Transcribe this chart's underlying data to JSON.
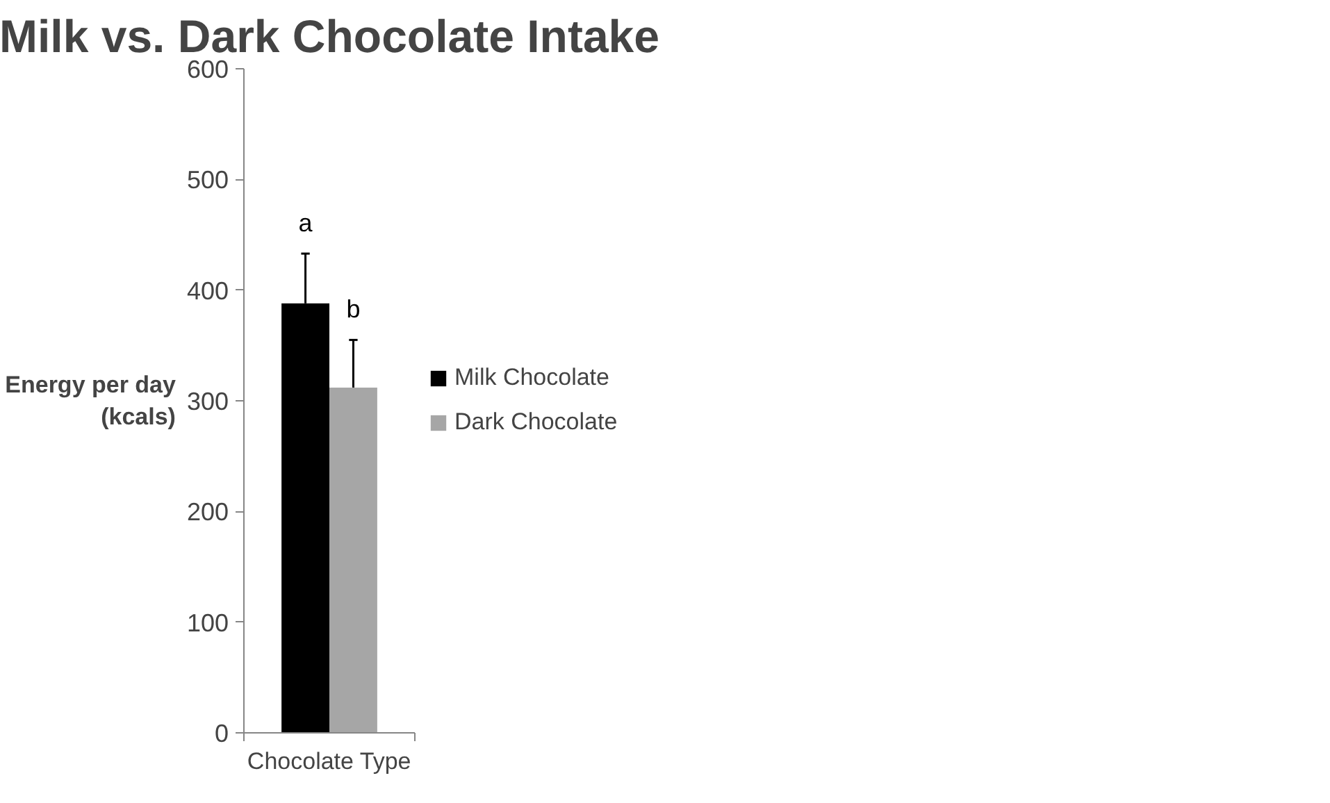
{
  "chart_data": {
    "type": "bar",
    "title": "Milk vs. Dark Chocolate Intake",
    "xlabel": "Chocolate Type",
    "ylabel": "Energy per day\n(kcals)",
    "categories": [
      null
    ],
    "series": [
      {
        "name": "Milk Chocolate",
        "color": "#000000",
        "values": [
          388
        ],
        "errors": [
          [
            388,
            433
          ]
        ]
      },
      {
        "name": "Dark Chocolate",
        "color": "#a6a6a6",
        "values": [
          312
        ],
        "errors": [
          [
            312,
            355
          ]
        ]
      }
    ],
    "annotations": [
      "a",
      "b"
    ],
    "ylim": [
      0,
      600
    ],
    "yticks": [
      0,
      100,
      200,
      300,
      400,
      500,
      600
    ],
    "grid": false,
    "legend": "right"
  }
}
